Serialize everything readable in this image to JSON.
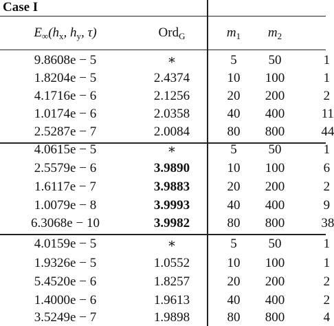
{
  "header": {
    "case": "Case I",
    "columns": [
      [
        "E",
        "∞",
        "(h",
        "x",
        ", h",
        "y",
        ", τ)"
      ],
      [
        "Ord",
        "G"
      ],
      [
        "m",
        "1"
      ],
      [
        "m",
        "2"
      ]
    ]
  },
  "groups": [
    {
      "bold_ord": false,
      "rows": [
        [
          "9.8608e − 5",
          "∗",
          "5",
          "50",
          "1"
        ],
        [
          "1.8204e − 5",
          "2.4374",
          "10",
          "100",
          "1"
        ],
        [
          "4.1716e − 6",
          "2.1256",
          "20",
          "200",
          "2"
        ],
        [
          "1.0174e − 6",
          "2.0358",
          "40",
          "400",
          "11"
        ],
        [
          "2.5287e − 7",
          "2.0084",
          "80",
          "800",
          "44"
        ]
      ]
    },
    {
      "bold_ord": true,
      "rows": [
        [
          "4.0615e − 5",
          "∗",
          "5",
          "50",
          "1"
        ],
        [
          "2.5579e − 6",
          "3.9890",
          "10",
          "100",
          "6"
        ],
        [
          "1.6117e − 7",
          "3.9883",
          "20",
          "200",
          "2"
        ],
        [
          "1.0079e − 8",
          "3.9993",
          "40",
          "400",
          "9"
        ],
        [
          "6.3068e − 10",
          "3.9982",
          "80",
          "800",
          "38"
        ]
      ]
    },
    {
      "bold_ord": false,
      "rows": [
        [
          "4.0159e − 5",
          "∗",
          "5",
          "50",
          "1"
        ],
        [
          "1.9326e − 5",
          "1.0552",
          "10",
          "100",
          "1"
        ],
        [
          "5.4520e − 6",
          "1.8257",
          "20",
          "200",
          "2"
        ],
        [
          "1.4000e − 6",
          "1.9613",
          "40",
          "400",
          "2"
        ],
        [
          "3.5249e − 7",
          "1.9898",
          "80",
          "800",
          "4"
        ]
      ]
    }
  ]
}
